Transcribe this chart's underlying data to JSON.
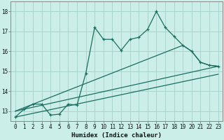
{
  "xlabel": "Humidex (Indice chaleur)",
  "bg_color": "#cceee8",
  "grid_color": "#aad4ce",
  "line_color": "#1a6e60",
  "xlim": [
    -0.5,
    23.5
  ],
  "ylim": [
    12.5,
    18.5
  ],
  "yticks": [
    13,
    14,
    15,
    16,
    17,
    18
  ],
  "xticks": [
    0,
    1,
    2,
    3,
    4,
    5,
    6,
    7,
    8,
    9,
    10,
    11,
    12,
    13,
    14,
    15,
    16,
    17,
    18,
    19,
    20,
    21,
    22,
    23
  ],
  "line1_x": [
    0,
    1,
    2,
    3,
    4,
    5,
    6,
    7,
    8,
    9,
    10,
    11,
    12,
    13,
    14,
    15,
    16,
    17,
    18,
    19,
    20,
    21,
    22,
    23
  ],
  "line1_y": [
    12.7,
    13.1,
    13.35,
    13.35,
    12.8,
    12.85,
    13.35,
    13.3,
    14.9,
    17.2,
    16.6,
    16.6,
    16.05,
    16.6,
    16.7,
    17.1,
    18.0,
    17.2,
    16.75,
    16.3,
    16.0,
    15.45,
    15.3,
    15.25
  ],
  "line2_x": [
    0,
    19,
    20,
    21,
    22,
    23
  ],
  "line2_y": [
    13.0,
    16.3,
    16.0,
    15.45,
    15.3,
    15.25
  ],
  "line3_x": [
    0,
    23
  ],
  "line3_y": [
    13.0,
    15.25
  ],
  "line4_x": [
    0,
    23
  ],
  "line4_y": [
    12.7,
    14.85
  ]
}
